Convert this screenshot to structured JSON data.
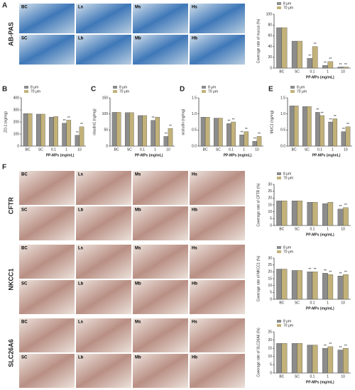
{
  "panel_f": "F",
  "micrographs": [
    {
      "stain": "AB-PAS",
      "labels": [
        "BC",
        "Ls",
        "Ms",
        "Hs",
        "SC",
        "Lb",
        "Mb",
        "Hb"
      ]
    },
    {
      "stain": "CFTR",
      "labels": [
        "BC",
        "Ls",
        "Ms",
        "Hs",
        "SC",
        "Lb",
        "Mb",
        "Hb"
      ]
    },
    {
      "stain": "NKCC1",
      "labels": [
        "BC",
        "Ls",
        "Ms",
        "Hs",
        "SC",
        "Lb",
        "Mb",
        "Hb"
      ]
    },
    {
      "stain": "SLC26A6",
      "labels": [
        "BC",
        "Ls",
        "Ms",
        "Hs",
        "SC",
        "Lb",
        "Mb",
        "Hb"
      ]
    }
  ],
  "chart_data": [
    {
      "type": "bar",
      "panel": "A",
      "ylabel": "Coverage rate of mucus (%)",
      "xlabel": "PP-MPs (mg/mL)",
      "categories": [
        "BC",
        "SC",
        "0.1",
        "1",
        "10"
      ],
      "ylim": [
        0,
        100
      ],
      "yticks": [
        0,
        20,
        40,
        60,
        80,
        100
      ],
      "series": [
        {
          "name": "8 μm",
          "color": "#8c8c8c",
          "values": [
            75,
            50,
            18,
            5,
            2
          ],
          "sig": [
            null,
            null,
            "**",
            "**",
            "**"
          ]
        },
        {
          "name": "70 μm",
          "color": "#c2b27a",
          "values": [
            75,
            50,
            40,
            12,
            2
          ],
          "sig": [
            null,
            null,
            "**",
            "**",
            "**"
          ]
        }
      ]
    },
    {
      "type": "bar",
      "panel": "B",
      "ylabel": "ZO-1 (ng/mg)",
      "xlabel": "PP-MPs (mg/mL)",
      "categories": [
        "BC",
        "SC",
        "0.1",
        "1",
        "10"
      ],
      "ylim": [
        0,
        400
      ],
      "yticks": [
        0,
        100,
        200,
        300,
        400
      ],
      "series": [
        {
          "name": "8 μm",
          "color": "#8c8c8c",
          "values": [
            270,
            265,
            240,
            190,
            90
          ],
          "sig": [
            null,
            null,
            null,
            "**",
            "**"
          ]
        },
        {
          "name": "70 μm",
          "color": "#c2b27a",
          "values": [
            270,
            265,
            245,
            215,
            160
          ],
          "sig": [
            null,
            null,
            null,
            "**",
            "**"
          ]
        }
      ]
    },
    {
      "type": "bar",
      "panel": "C",
      "ylabel": "claudin1 (ng/mg)",
      "xlabel": "PP-MPs (mg/mL)",
      "categories": [
        "BC",
        "SC",
        "0.1",
        "1",
        "10"
      ],
      "ylim": [
        0,
        150
      ],
      "yticks": [
        0,
        50,
        100,
        150
      ],
      "series": [
        {
          "name": "8 μm",
          "color": "#8c8c8c",
          "values": [
            105,
            104,
            95,
            80,
            30
          ],
          "sig": [
            null,
            null,
            null,
            "**",
            "**"
          ]
        },
        {
          "name": "70 μm",
          "color": "#c2b27a",
          "values": [
            105,
            104,
            95,
            90,
            55
          ],
          "sig": [
            null,
            null,
            null,
            null,
            "**"
          ]
        }
      ]
    },
    {
      "type": "bar",
      "panel": "D",
      "ylabel": "occludin (ng/mg)",
      "xlabel": "PP-MPs (mg/mL)",
      "categories": [
        "BC",
        "SC",
        "0.1",
        "1",
        "10"
      ],
      "ylim": [
        0,
        1.5
      ],
      "yticks": [
        {
          "value": 0,
          "label": "0.0"
        },
        0.5,
        {
          "value": 1,
          "label": "1.0"
        },
        1.5
      ],
      "series": [
        {
          "name": "8 μm",
          "color": "#8c8c8c",
          "values": [
            0.9,
            0.87,
            0.7,
            0.35,
            0.15
          ],
          "sig": [
            null,
            null,
            "**",
            "**",
            "**"
          ]
        },
        {
          "name": "70 μm",
          "color": "#c2b27a",
          "values": [
            0.9,
            0.87,
            0.75,
            0.45,
            0.3
          ],
          "sig": [
            null,
            null,
            "**",
            "**",
            "**"
          ]
        }
      ]
    },
    {
      "type": "bar",
      "panel": "E",
      "ylabel": "MUC1 (ng/mg)",
      "xlabel": "PP-MPs (mg/mL)",
      "categories": [
        "BC",
        "SC",
        "0.1",
        "1",
        "10"
      ],
      "ylim": [
        0,
        1.5
      ],
      "yticks": [
        {
          "value": 0,
          "label": "0.0"
        },
        0.5,
        {
          "value": 1,
          "label": "1.0"
        },
        1.5
      ],
      "series": [
        {
          "name": "8 μm",
          "color": "#8c8c8c",
          "values": [
            1.25,
            1.23,
            1.05,
            0.75,
            0.45
          ],
          "sig": [
            null,
            null,
            "**",
            "**",
            "**"
          ]
        },
        {
          "name": "70 μm",
          "color": "#c2b27a",
          "values": [
            1.25,
            1.23,
            0.95,
            0.85,
            0.6
          ],
          "sig": [
            null,
            null,
            "**",
            "**",
            "**"
          ]
        }
      ]
    },
    {
      "type": "bar",
      "ylabel": "Coverage rate of CFTR (%)",
      "xlabel": "PP-MPs (mg/mL)",
      "categories": [
        "BC",
        "SC",
        "0.1",
        "1",
        "10"
      ],
      "ylim": [
        0,
        30
      ],
      "yticks": [
        0,
        5,
        10,
        15,
        20,
        25,
        30
      ],
      "series": [
        {
          "name": "8 μm",
          "color": "#8c8c8c",
          "values": [
            18,
            18,
            17,
            16,
            12
          ],
          "sig": [
            null,
            null,
            null,
            null,
            "**"
          ]
        },
        {
          "name": "70 μm",
          "color": "#c2b27a",
          "values": [
            18,
            18,
            17,
            17,
            13
          ],
          "sig": [
            null,
            null,
            null,
            null,
            "**"
          ]
        }
      ]
    },
    {
      "type": "bar",
      "ylabel": "Coverage rate of NKCC1 (%)",
      "xlabel": "PP-MPs (mg/mL)",
      "categories": [
        "BC",
        "SC",
        "0.1",
        "1",
        "10"
      ],
      "ylim": [
        0,
        30
      ],
      "yticks": [
        0,
        5,
        10,
        15,
        20,
        25,
        30
      ],
      "series": [
        {
          "name": "8 μm",
          "color": "#8c8c8c",
          "values": [
            22,
            21,
            20,
            19,
            17
          ],
          "sig": [
            null,
            null,
            "**",
            "**",
            "**"
          ]
        },
        {
          "name": "70 μm",
          "color": "#c2b27a",
          "values": [
            22,
            21,
            20,
            18,
            18
          ],
          "sig": [
            null,
            null,
            "**",
            "**",
            "**"
          ]
        }
      ]
    },
    {
      "type": "bar",
      "ylabel": "Coverage rate of SLC26A6 (%)",
      "xlabel": "PP-MPs (mg/mL)",
      "categories": [
        "BC",
        "SC",
        "0.1",
        "1",
        "10"
      ],
      "ylim": [
        0,
        25
      ],
      "yticks": [
        0,
        5,
        10,
        15,
        20,
        25
      ],
      "series": [
        {
          "name": "8 μm",
          "color": "#8c8c8c",
          "values": [
            18,
            18,
            17,
            15,
            14
          ],
          "sig": [
            null,
            null,
            null,
            "**",
            "**"
          ]
        },
        {
          "name": "70 μm",
          "color": "#c2b27a",
          "values": [
            18,
            18,
            17,
            16,
            15
          ],
          "sig": [
            null,
            null,
            null,
            "**",
            "**"
          ]
        }
      ]
    }
  ]
}
